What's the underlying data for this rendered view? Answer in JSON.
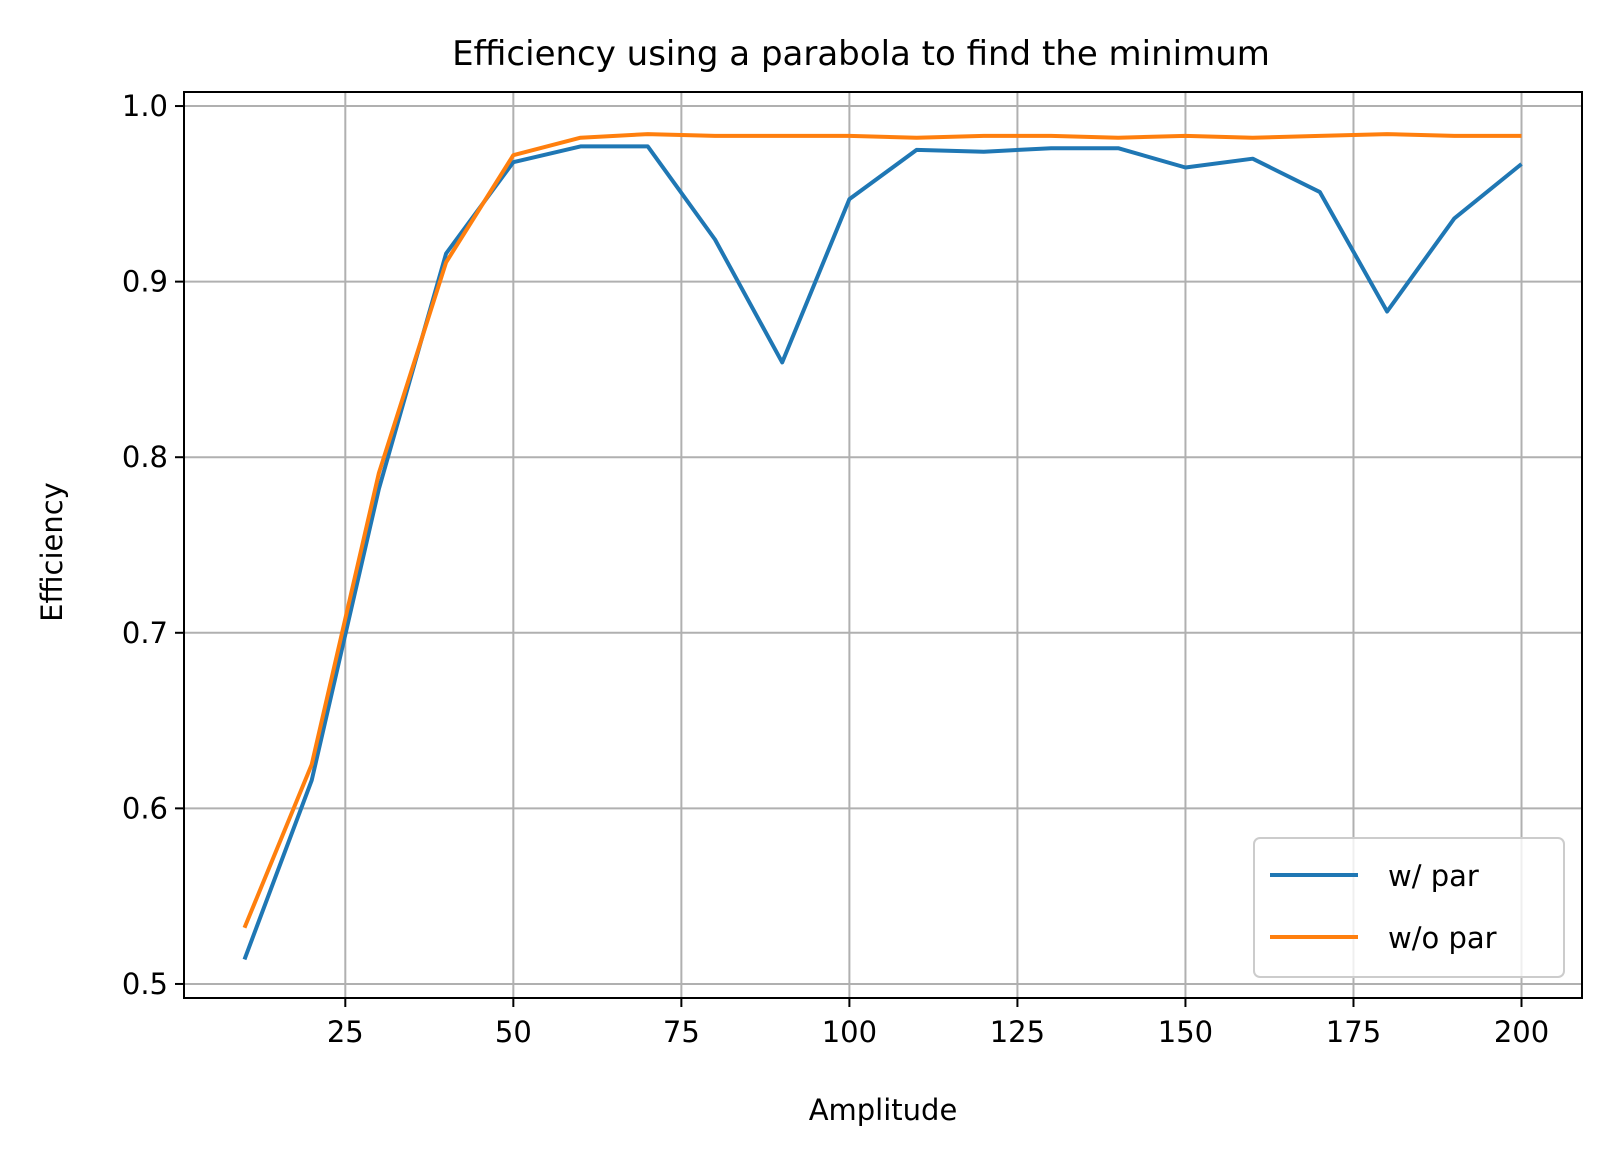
{
  "chart_data": {
    "type": "line",
    "title": "Efficiency using a parabola to find the minimum",
    "xlabel": "Amplitude",
    "ylabel": "Efficiency",
    "xlim": [
      1,
      209
    ],
    "ylim": [
      0.492,
      1.008
    ],
    "xticks": [
      25,
      50,
      75,
      100,
      125,
      150,
      175,
      200
    ],
    "yticks": [
      0.5,
      0.6,
      0.7,
      0.8,
      0.9,
      1.0
    ],
    "xtick_labels": [
      "25",
      "50",
      "75",
      "100",
      "125",
      "150",
      "175",
      "200"
    ],
    "ytick_labels": [
      "0.5",
      "0.6",
      "0.7",
      "0.8",
      "0.9",
      "1.0"
    ],
    "grid": true,
    "legend_position": "lower-right",
    "x": [
      10,
      20,
      30,
      40,
      50,
      60,
      70,
      80,
      90,
      100,
      110,
      120,
      130,
      140,
      150,
      160,
      170,
      180,
      190,
      200
    ],
    "series": [
      {
        "name": "w/ par",
        "color": "#1f77b4",
        "values": [
          0.514,
          0.616,
          0.782,
          0.916,
          0.968,
          0.977,
          0.977,
          0.924,
          0.854,
          0.947,
          0.975,
          0.974,
          0.976,
          0.976,
          0.965,
          0.97,
          0.951,
          0.883,
          0.936,
          0.967
        ]
      },
      {
        "name": "w/o par",
        "color": "#ff7f0e",
        "values": [
          0.532,
          0.625,
          0.791,
          0.911,
          0.972,
          0.982,
          0.984,
          0.983,
          0.983,
          0.983,
          0.982,
          0.983,
          0.983,
          0.982,
          0.983,
          0.982,
          0.983,
          0.984,
          0.983,
          0.983
        ]
      }
    ]
  }
}
